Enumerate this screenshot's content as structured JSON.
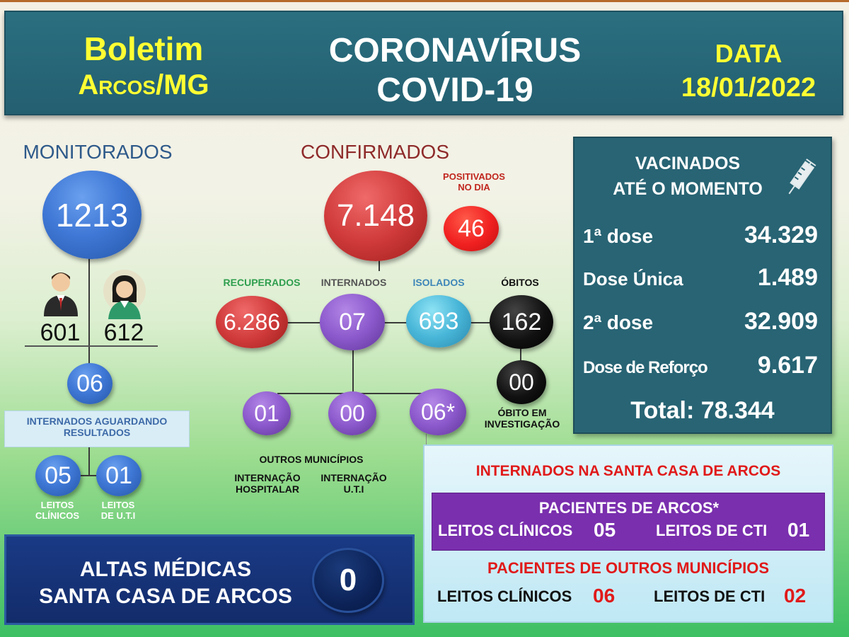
{
  "header": {
    "boletim": "Boletim",
    "city": "Arcos/MG",
    "title_line1": "CORONAVÍRUS",
    "title_line2": "COVID-19",
    "data_label": "DATA",
    "date": "18/01/2022"
  },
  "monitorados": {
    "title": "MONITORADOS",
    "total": "1213",
    "male": "601",
    "female": "612",
    "internados": "06",
    "internados_label": "INTERNADOS AGUARDANDO RESULTADOS",
    "leitos_clinicos": "05",
    "leitos_clinicos_label_1": "LEITOS",
    "leitos_clinicos_label_2": "CLÍNICOS",
    "leitos_uti": "01",
    "leitos_uti_label_1": "LEITOS",
    "leitos_uti_label_2": "DE U.T.I"
  },
  "confirmados": {
    "title": "CONFIRMADOS",
    "total": "7.148",
    "positivados_label_1": "POSITIVADOS",
    "positivados_label_2": "NO DIA",
    "positivados": "46",
    "recuperados_label": "RECUPERADOS",
    "recuperados": "6.286",
    "internados_label": "INTERNADOS",
    "internados": "07",
    "isolados_label": "ISOLADOS",
    "isolados": "693",
    "obitos_label": "ÓBITOS",
    "obitos": "162",
    "obito_investigacao": "00",
    "obito_investigacao_label_1": "ÓBITO EM",
    "obito_investigacao_label_2": "INVESTIGAÇÃO",
    "outros_municipios": "01",
    "internacao_hospitalar": "00",
    "internacao_uti": "06*",
    "outros_municipios_label": "OUTROS MUNICÍPIOS",
    "internacao_hospitalar_label_1": "INTERNAÇÃO",
    "internacao_hospitalar_label_2": "HOSPITALAR",
    "internacao_uti_label_1": "INTERNAÇÃO",
    "internacao_uti_label_2": "U.T.I"
  },
  "vacinados": {
    "title_1": "VACINADOS",
    "title_2": "ATÉ O MOMENTO",
    "icon": "syringe-icon",
    "rows": [
      {
        "label": "1ª dose",
        "value": "34.329"
      },
      {
        "label": "Dose Única",
        "value": "1.489"
      },
      {
        "label": "2ª dose",
        "value": "32.909"
      },
      {
        "label": "Dose de Reforço",
        "value": "9.617"
      }
    ],
    "total": "Total: 78.344"
  },
  "santa_casa": {
    "title": "INTERNADOS NA SANTA CASA DE ARCOS",
    "arcos_title": "PACIENTES DE ARCOS*",
    "arcos_clinicos_label": "LEITOS CLÍNICOS",
    "arcos_clinicos": "05",
    "arcos_cti_label": "LEITOS DE CTI",
    "arcos_cti": "01",
    "outros_title": "PACIENTES DE OUTROS MUNICÍPIOS",
    "outros_clinicos_label": "LEITOS CLÍNICOS",
    "outros_clinicos": "06",
    "outros_cti_label": "LEITOS DE CTI",
    "outros_cti": "02"
  },
  "altas": {
    "label_1": "ALTAS MÉDICAS",
    "label_2": "SANTA CASA DE ARCOS",
    "value": "0"
  },
  "colors": {
    "header_bg": "#2a6f80",
    "yellow": "#ffff33",
    "red_text": "#e01a1a",
    "purple_panel": "#7a2fae",
    "vac_panel": "#286474",
    "altas_panel": "#1a3a86"
  }
}
